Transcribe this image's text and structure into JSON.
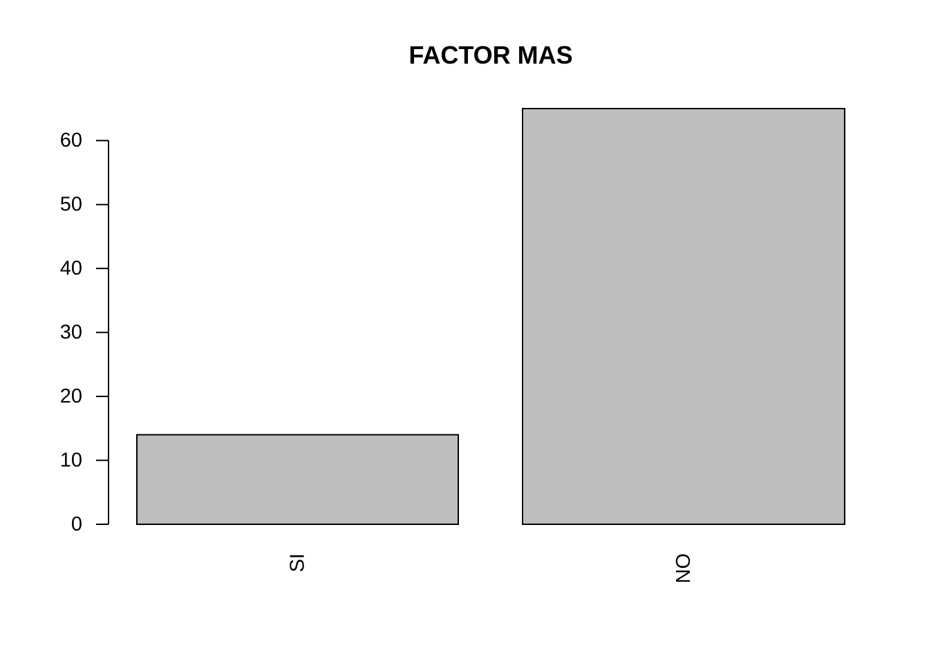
{
  "chart_data": {
    "type": "bar",
    "title": "FACTOR MAS",
    "categories": [
      "SI",
      "NO"
    ],
    "values": [
      14,
      65
    ],
    "xlabel": "",
    "ylabel": "",
    "ylim": [
      0,
      65
    ],
    "y_ticks": [
      0,
      10,
      20,
      30,
      40,
      50,
      60
    ],
    "x_tick_orientation": "vertical",
    "grid": false,
    "legend": "none",
    "bar_color": "#bebebe",
    "bar_border_color": "#000000"
  }
}
